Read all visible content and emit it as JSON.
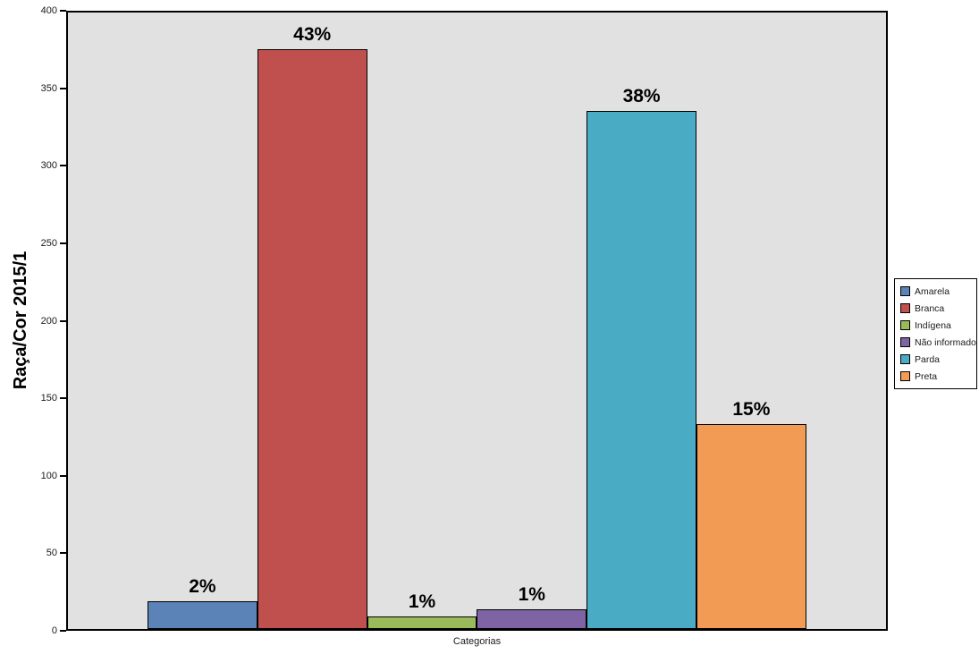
{
  "chart_data": {
    "type": "bar",
    "title": "",
    "ylabel": "Raça/Cor 2015/1",
    "xlabel": "Categorias",
    "ylim": [
      0,
      400
    ],
    "ytick_step": 50,
    "yticks": [
      0,
      50,
      100,
      150,
      200,
      250,
      300,
      350,
      400
    ],
    "grid": false,
    "legend_position": "right",
    "plot_background": "#e1e1e1",
    "bar_border_color": "#000000",
    "categories": [
      "Amarela",
      "Branca",
      "Indígena",
      "Não informado",
      "Parda",
      "Preta"
    ],
    "values": [
      18,
      376,
      8,
      13,
      336,
      133
    ],
    "bar_labels": [
      "2%",
      "43%",
      "1%",
      "1%",
      "38%",
      "15%"
    ],
    "colors": [
      "#5b83b8",
      "#c0504d",
      "#9abb59",
      "#7e64a4",
      "#4aabc5",
      "#f29b55"
    ],
    "legend": [
      "Amarela",
      "Branca",
      "Indígena",
      "Não informado",
      "Parda",
      "Preta"
    ]
  }
}
